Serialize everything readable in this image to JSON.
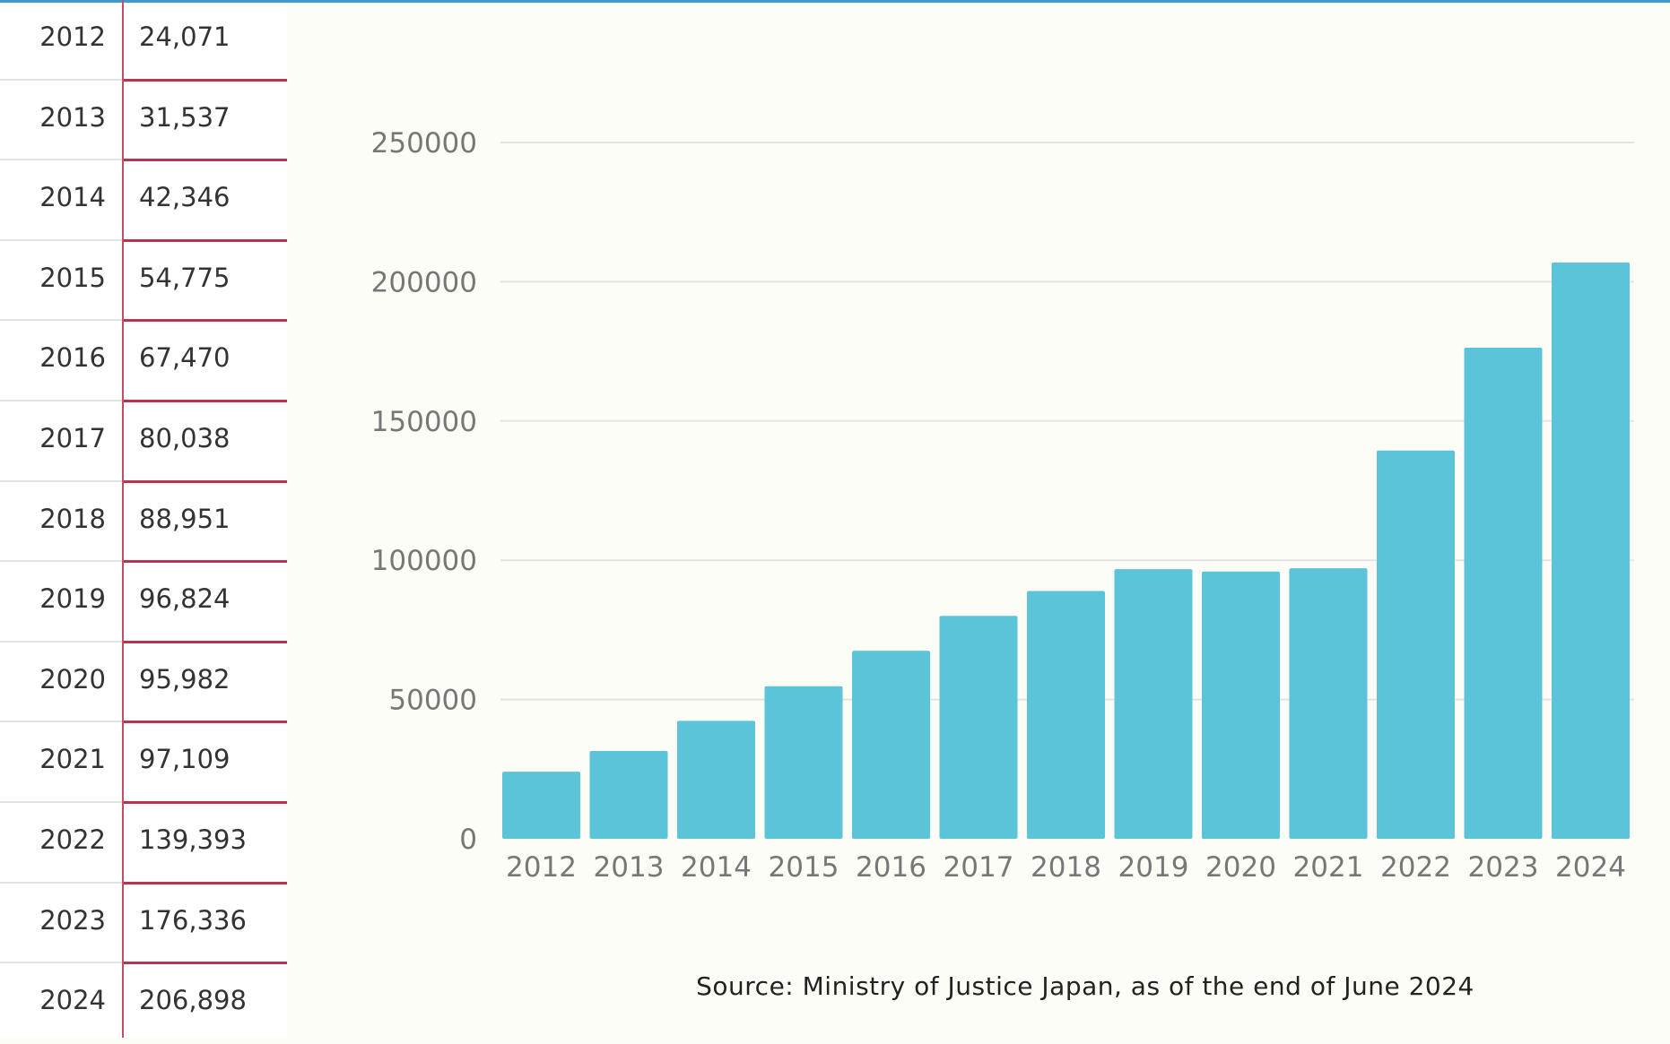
{
  "table": {
    "rows": [
      {
        "year": "2012",
        "value": "24,071"
      },
      {
        "year": "2013",
        "value": "31,537"
      },
      {
        "year": "2014",
        "value": "42,346"
      },
      {
        "year": "2015",
        "value": "54,775"
      },
      {
        "year": "2016",
        "value": "67,470"
      },
      {
        "year": "2017",
        "value": "80,038"
      },
      {
        "year": "2018",
        "value": "88,951"
      },
      {
        "year": "2019",
        "value": "96,824"
      },
      {
        "year": "2020",
        "value": "95,982"
      },
      {
        "year": "2021",
        "value": "97,109"
      },
      {
        "year": "2022",
        "value": "139,393"
      },
      {
        "year": "2023",
        "value": "176,336"
      },
      {
        "year": "2024",
        "value": "206,898"
      }
    ]
  },
  "chart_data": {
    "type": "bar",
    "title": "",
    "xlabel": "",
    "ylabel": "",
    "categories": [
      "2012",
      "2013",
      "2014",
      "2015",
      "2016",
      "2017",
      "2018",
      "2019",
      "2020",
      "2021",
      "2022",
      "2023",
      "2024"
    ],
    "values": [
      24071,
      31537,
      42346,
      54775,
      67470,
      80038,
      88951,
      96824,
      95982,
      97109,
      139393,
      176336,
      206898
    ],
    "ylim": [
      0,
      250000
    ],
    "yticks": [
      0,
      50000,
      100000,
      150000,
      200000,
      250000
    ],
    "grid": true,
    "bar_color": "#5bc4d9"
  },
  "source": "Source: Ministry of Justice Japan, as of the end of June 2024"
}
